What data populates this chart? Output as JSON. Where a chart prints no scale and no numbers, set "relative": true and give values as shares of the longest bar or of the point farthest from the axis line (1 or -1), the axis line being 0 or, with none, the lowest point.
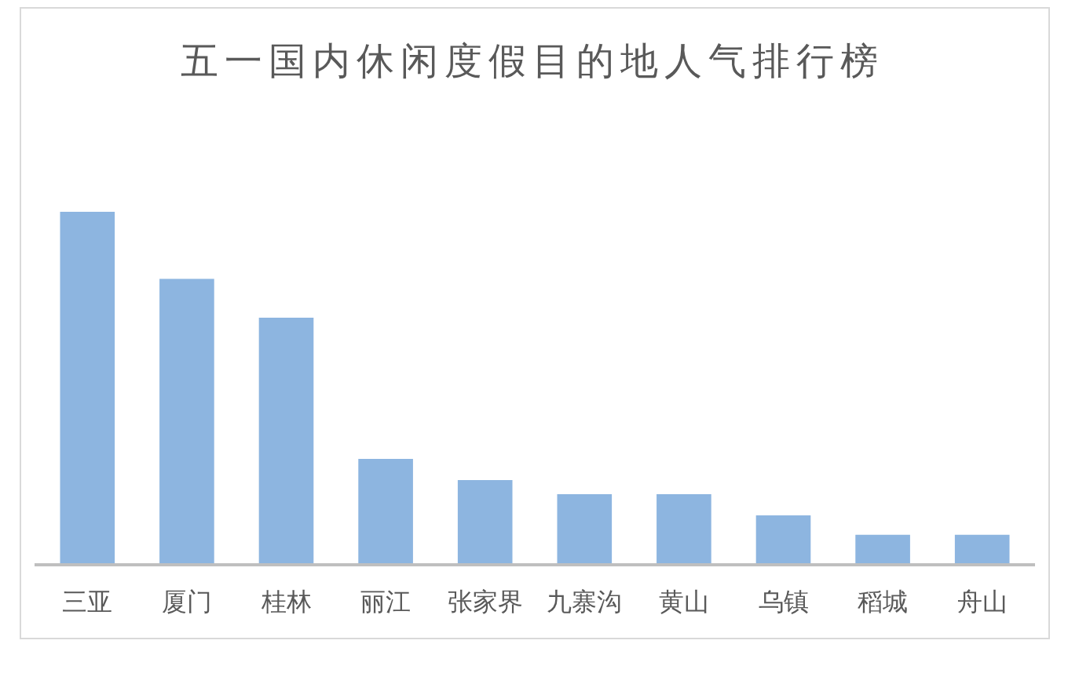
{
  "chart_data": {
    "type": "bar",
    "title": "五一国内休闲度假目的地人气排行榜",
    "categories": [
      "三亚",
      "厦门",
      "桂林",
      "丽江",
      "张家界",
      "九寨沟",
      "黄山",
      "乌镇",
      "稻城",
      "舟山"
    ],
    "values": [
      1,
      0.81,
      0.7,
      0.3,
      0.24,
      0.2,
      0.2,
      0.14,
      0.085,
      0.085
    ],
    "color": "#8db5e0",
    "relative": true
  }
}
